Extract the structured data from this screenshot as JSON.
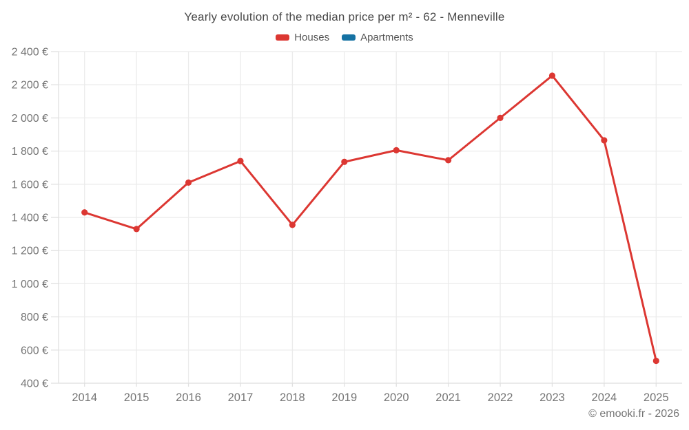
{
  "header": {
    "title": "Yearly evolution of the median price per m² - 62 - Menneville"
  },
  "footer": {
    "credit": "© emooki.fr - 2026"
  },
  "colors": {
    "houses": "#dc3732",
    "apartments": "#1572a3",
    "grid": "#ebebeb",
    "axis_line": "#e0e0e0",
    "axis_text": "#757575",
    "title_text": "#4a4a4a",
    "legend_text": "#555555",
    "footer_text": "#757575",
    "background": "#ffffff"
  },
  "chart_data": {
    "type": "line",
    "title": "Yearly evolution of the median price per m² - 62 - Menneville",
    "categories": [
      "2014",
      "2015",
      "2016",
      "2017",
      "2018",
      "2019",
      "2020",
      "2021",
      "2022",
      "2023",
      "2024",
      "2025"
    ],
    "series": [
      {
        "name": "Houses",
        "color": "#dc3732",
        "values": [
          1430,
          1330,
          1610,
          1740,
          1355,
          1735,
          1805,
          1745,
          2000,
          2255,
          1865,
          535
        ]
      },
      {
        "name": "Apartments",
        "color": "#1572a3",
        "values": []
      }
    ],
    "xlabel": "",
    "ylabel": "",
    "y_unit": "€",
    "ylim": [
      400,
      2400
    ],
    "ytick_step": 200,
    "ytick_labels": [
      "400 €",
      "600 €",
      "800 €",
      "1 000 €",
      "1 200 €",
      "1 400 €",
      "1 600 €",
      "1 800 €",
      "2 000 €",
      "2 200 €",
      "2 400 €"
    ],
    "grid": true,
    "legend_position": "top",
    "marker": "circle",
    "line_width": 3
  }
}
